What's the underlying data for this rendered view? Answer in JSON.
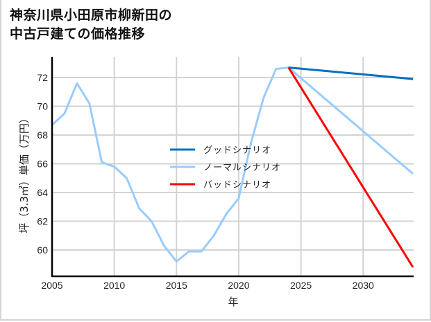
{
  "title_line1": "神奈川県小田原市柳新田の",
  "title_line2": "中古戸建ての価格推移",
  "chart_data": {
    "type": "line",
    "title": "神奈川県小田原市柳新田の中古戸建ての価格推移",
    "xlabel": "年",
    "ylabel": "坪（3.3㎡）単価（万円）",
    "xlim": [
      2005,
      2034
    ],
    "ylim": [
      58.3,
      73.5
    ],
    "x_ticks": [
      2005,
      2010,
      2015,
      2020,
      2025,
      2030
    ],
    "y_ticks": [
      60,
      62,
      64,
      66,
      68,
      70,
      72
    ],
    "grid": true,
    "legend_position": "center",
    "series": [
      {
        "name": "グッドシナリオ",
        "color": "#0070c0",
        "x": [
          2024,
          2034
        ],
        "values": [
          72.7,
          71.9
        ]
      },
      {
        "name": "ノーマルシナリオ",
        "color": "#99ccff",
        "x": [
          2005,
          2006,
          2007,
          2008,
          2009,
          2010,
          2011,
          2012,
          2013,
          2014,
          2015,
          2016,
          2017,
          2018,
          2019,
          2020,
          2021,
          2022,
          2023,
          2024,
          2034
        ],
        "values": [
          68.7,
          69.5,
          71.6,
          70.2,
          66.1,
          65.8,
          65.0,
          62.9,
          62.0,
          60.3,
          59.2,
          59.9,
          59.9,
          61.0,
          62.5,
          63.6,
          67.5,
          70.6,
          72.6,
          72.7,
          65.3
        ]
      },
      {
        "name": "バッドシナリオ",
        "color": "#ff0000",
        "x": [
          2024,
          2034
        ],
        "values": [
          72.7,
          58.8
        ]
      }
    ]
  }
}
